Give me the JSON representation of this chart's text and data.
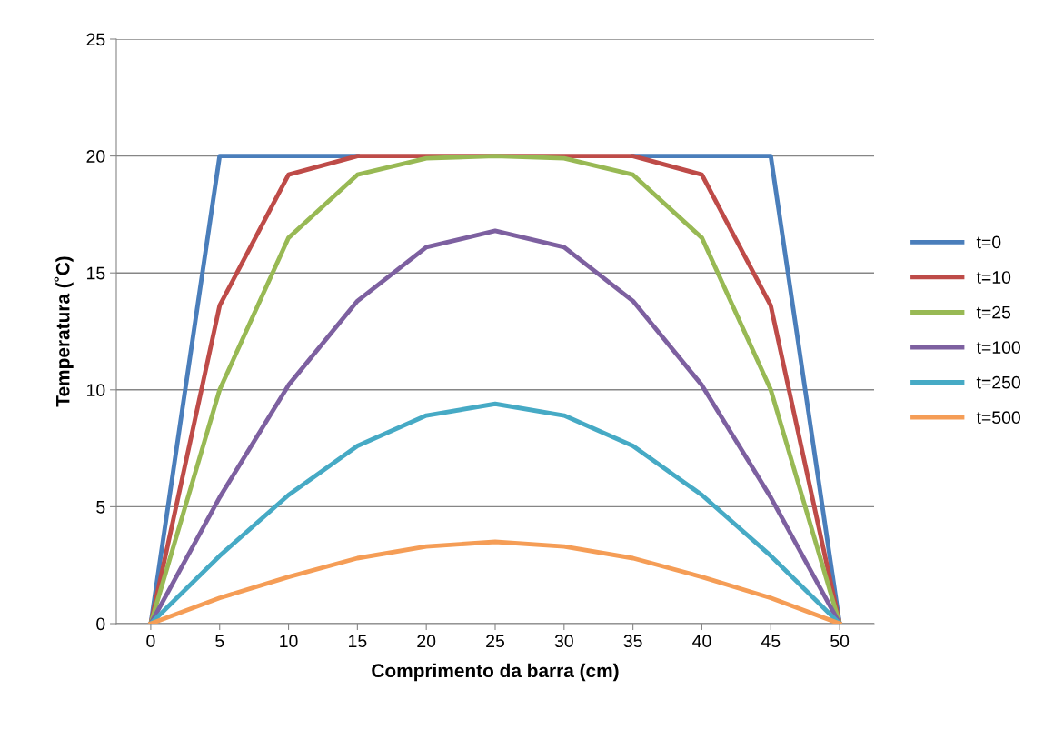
{
  "chart_data": {
    "type": "line",
    "xlabel": "Comprimento da barra (cm)",
    "ylabel": "Temperatura (˚C)",
    "categories": [
      "0",
      "5",
      "10",
      "15",
      "20",
      "25",
      "30",
      "35",
      "40",
      "45",
      "50"
    ],
    "ylim": [
      0,
      25
    ],
    "yticks": [
      0,
      5,
      10,
      15,
      20,
      25
    ],
    "grid": "y",
    "legend": "right",
    "marker": "none",
    "line_style": "solid",
    "series": [
      {
        "name": "t=0",
        "color": "#4a7ebb",
        "values": [
          0,
          20,
          20,
          20,
          null,
          null,
          null,
          20,
          20,
          20,
          0
        ]
      },
      {
        "name": "t=10",
        "color": "#be4b48",
        "values": [
          0,
          13.6,
          19.2,
          20,
          20,
          20,
          20,
          20,
          19.2,
          13.6,
          0
        ]
      },
      {
        "name": "t=25",
        "color": "#98b954",
        "values": [
          0,
          10,
          16.5,
          19.2,
          19.9,
          20,
          19.9,
          19.2,
          16.5,
          10,
          0
        ]
      },
      {
        "name": "t=100",
        "color": "#7d60a0",
        "values": [
          0,
          5.4,
          10.2,
          13.8,
          16.1,
          16.8,
          16.1,
          13.8,
          10.2,
          5.4,
          0
        ]
      },
      {
        "name": "t=250",
        "color": "#46aac5",
        "values": [
          0,
          2.9,
          5.5,
          7.6,
          8.9,
          9.4,
          8.9,
          7.6,
          5.5,
          2.9,
          0
        ]
      },
      {
        "name": "t=500",
        "color": "#f59d56",
        "values": [
          0,
          1.1,
          2.0,
          2.8,
          3.3,
          3.5,
          3.3,
          2.8,
          2.0,
          1.1,
          0
        ]
      }
    ]
  }
}
